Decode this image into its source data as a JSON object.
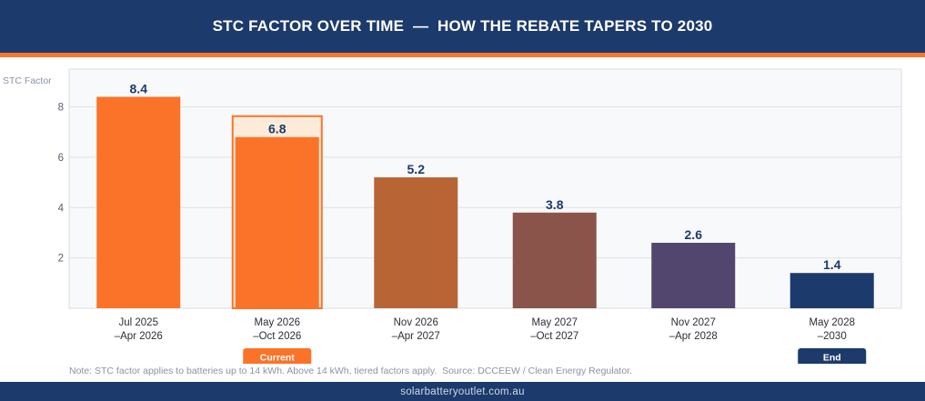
{
  "header": {
    "title": "STC FACTOR OVER TIME  —  HOW THE REBATE TAPERS TO 2030"
  },
  "chart_data": {
    "type": "bar",
    "ylabel": "STC Factor",
    "ylim": [
      0,
      9.5
    ],
    "yticks": [
      2,
      4,
      6,
      8
    ],
    "grid": true,
    "categories": [
      [
        "Jul 2025",
        "–Apr 2026"
      ],
      [
        "May 2026",
        "–Oct 2026"
      ],
      [
        "Nov 2026",
        "–Apr 2027"
      ],
      [
        "May 2027",
        "–Oct 2027"
      ],
      [
        "Nov 2027",
        "–Apr 2028"
      ],
      [
        "May 2028",
        "–2030"
      ]
    ],
    "values": [
      8.4,
      6.8,
      5.2,
      3.8,
      2.6,
      1.4
    ],
    "value_labels": [
      "8.4",
      "6.8",
      "5.2",
      "3.8",
      "2.6",
      "1.4"
    ],
    "colors": [
      "#fb7329",
      "#fb7329",
      "#b86434",
      "#8b544b",
      "#52466e",
      "#1c3a6b"
    ],
    "highlight_index": 1,
    "badges": [
      {
        "index": 1,
        "label": "Current",
        "color": "#fb7329"
      },
      {
        "index": 5,
        "label": "End",
        "color": "#1c3a6b"
      }
    ]
  },
  "note": "Note: STC factor applies to batteries up to 14 kWh. Above 14 kWh, tiered factors apply.  Source: DCCEEW / Clean Energy Regulator.",
  "footer": {
    "site": "solarbatteryoutlet.com.au"
  }
}
